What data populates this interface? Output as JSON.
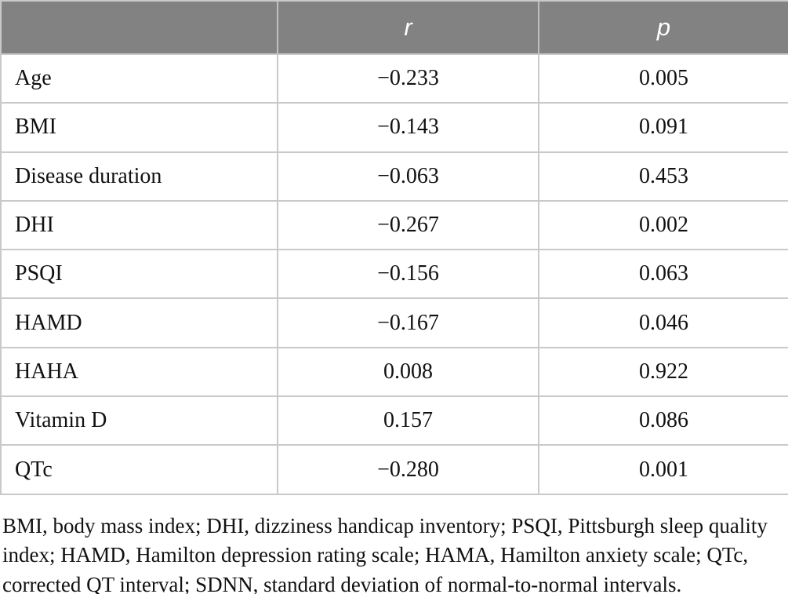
{
  "chart_data": {
    "type": "table",
    "title": "",
    "columns": [
      "",
      "r",
      "p"
    ],
    "rows": [
      {
        "label": "Age",
        "r": -0.233,
        "p": 0.005
      },
      {
        "label": "BMI",
        "r": -0.143,
        "p": 0.091
      },
      {
        "label": "Disease duration",
        "r": -0.063,
        "p": 0.453
      },
      {
        "label": "DHI",
        "r": -0.267,
        "p": 0.002
      },
      {
        "label": "PSQI",
        "r": -0.156,
        "p": 0.063
      },
      {
        "label": "HAMD",
        "r": -0.167,
        "p": 0.046
      },
      {
        "label": "HAHA",
        "r": 0.008,
        "p": 0.922
      },
      {
        "label": "Vitamin D",
        "r": 0.157,
        "p": 0.086
      },
      {
        "label": "QTc",
        "r": -0.28,
        "p": 0.001
      }
    ]
  },
  "table": {
    "header": {
      "col1": "",
      "col2": "r",
      "col3": "p"
    },
    "rows": [
      {
        "label": "Age",
        "r": "−0.233",
        "p": "0.005"
      },
      {
        "label": "BMI",
        "r": "−0.143",
        "p": "0.091"
      },
      {
        "label": "Disease duration",
        "r": "−0.063",
        "p": "0.453"
      },
      {
        "label": "DHI",
        "r": "−0.267",
        "p": "0.002"
      },
      {
        "label": "PSQI",
        "r": "−0.156",
        "p": "0.063"
      },
      {
        "label": "HAMD",
        "r": "−0.167",
        "p": "0.046"
      },
      {
        "label": "HAHA",
        "r": "0.008",
        "p": "0.922"
      },
      {
        "label": "Vitamin D",
        "r": "0.157",
        "p": "0.086"
      },
      {
        "label": "QTc",
        "r": "−0.280",
        "p": "0.001"
      }
    ]
  },
  "footnote": {
    "text": "BMI, body mass index; DHI, dizziness handicap inventory; PSQI, Pittsburgh sleep quality index; HAMD, Hamilton depression rating scale; HAMA, Hamilton anxiety scale; QTc, corrected QT interval; SDNN, standard deviation of normal-to-normal intervals.",
    "lines": [
      "BMI, body mass index; DHI, dizziness handicap inventory; PSQI, Pittsburgh sleep quality",
      "index; HAMD, Hamilton depression rating scale; HAMA, Hamilton anxiety scale; QTc,",
      "corrected QT interval; SDNN, standard deviation of normal-to-normal intervals."
    ]
  },
  "colors": {
    "header_bg": "#828282",
    "header_text": "#ffffff",
    "border": "#c9c9c9",
    "body_text": "#111111"
  }
}
